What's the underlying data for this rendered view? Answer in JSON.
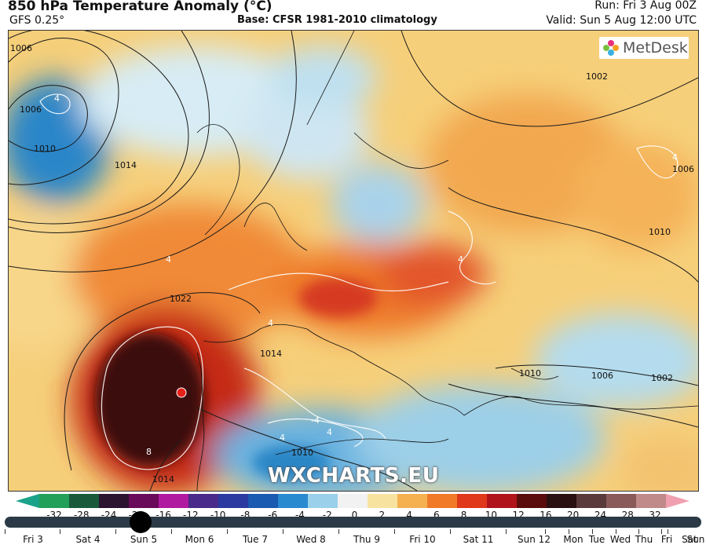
{
  "header": {
    "title": "850 hPa Temperature Anomaly (°C)",
    "model": "GFS 0.25°",
    "base": "Base: CFSR 1981-2010 climatology",
    "run": "Run: Fri 3 Aug 00Z",
    "valid": "Valid: Sun 5 Aug 12:00 UTC"
  },
  "logo": {
    "text": "MetDesk"
  },
  "watermark": "WXCHARTS.EU",
  "isobars": [
    "1006",
    "1006",
    "1010",
    "1014",
    "1022",
    "1014",
    "1010",
    "1002",
    "1006",
    "1010",
    "1006",
    "1002",
    "1010",
    "1014"
  ],
  "anomaly_labels": [
    "4",
    "4",
    "4",
    "4",
    "8",
    "4",
    "-4",
    "4",
    "4"
  ],
  "colorbar": {
    "labels": [
      "-32",
      "-28",
      "-24",
      "-20",
      "-16",
      "-12",
      "-10",
      "-8",
      "-6",
      "-4",
      "-2",
      "0",
      "2",
      "4",
      "6",
      "8",
      "10",
      "12",
      "16",
      "20",
      "24",
      "28",
      "32"
    ],
    "colors": [
      "#1aa38a",
      "#22a05a",
      "#1a5a3a",
      "#2a1430",
      "#6a0a5a",
      "#b01aa0",
      "#4a2a8a",
      "#2a3aa0",
      "#1a5ab0",
      "#2a8ad0",
      "#9ad0ea",
      "#f2f2f2",
      "#f8e2a0",
      "#f5b050",
      "#f07a28",
      "#e0381a",
      "#b0141a",
      "#5a0c0c",
      "#2a1010",
      "#5a3a3a",
      "#8a5a5a",
      "#c08a8a",
      "#f0a0b0"
    ]
  },
  "timeline": {
    "days": [
      "Fri 3",
      "Sat 4",
      "Sun 5",
      "Mon 6",
      "Tue 7",
      "Wed 8",
      "Thu 9",
      "Fri 10",
      "Sat 11",
      "Sun 12",
      "Mon",
      "Tue",
      "Wed",
      "Thu",
      "Fri",
      "Sat",
      "Sun"
    ],
    "current": "Sun 5"
  }
}
